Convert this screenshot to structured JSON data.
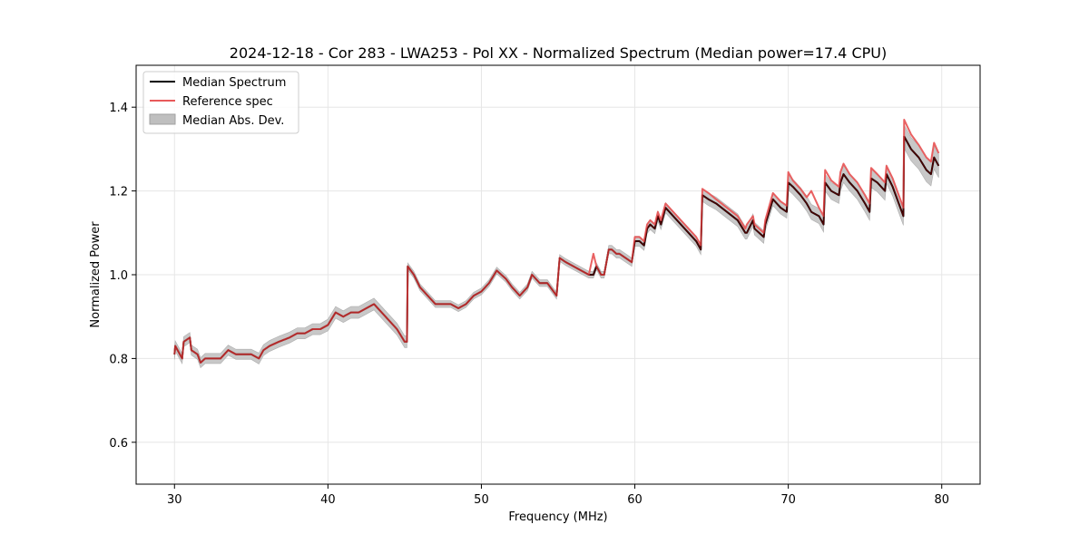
{
  "chart_data": {
    "type": "line",
    "title": "2024-12-18 - Cor 283 - LWA253 - Pol XX - Normalized Spectrum (Median power=17.4 CPU)",
    "xlabel": "Frequency (MHz)",
    "ylabel": "Normalized Power",
    "xlim": [
      27.5,
      82.5
    ],
    "ylim": [
      0.5,
      1.5
    ],
    "xticks": [
      30,
      40,
      50,
      60,
      70,
      80
    ],
    "yticks": [
      0.6,
      0.8,
      1.0,
      1.2,
      1.4
    ],
    "xtick_labels": [
      "30",
      "40",
      "50",
      "60",
      "70",
      "80"
    ],
    "ytick_labels": [
      "0.6",
      "0.8",
      "1.0",
      "1.2",
      "1.4"
    ],
    "grid": true,
    "legend_position": "top-left",
    "legend": {
      "median": "Median Spectrum",
      "reference": "Reference spec",
      "mad": "Median Abs. Dev."
    },
    "colors": {
      "median": "#000000",
      "reference": "#e8595a",
      "overlap": "#8b0000",
      "mad_fill": "#bfbfbf",
      "mad_edge": "#a0a0a0",
      "grid": "#e6e6e6"
    },
    "series": [
      {
        "name": "Median Spectrum",
        "x": [
          30.0,
          30.05,
          30.5,
          30.6,
          31.0,
          31.1,
          31.5,
          31.7,
          32.0,
          32.5,
          33.0,
          33.5,
          34.0,
          34.5,
          35.0,
          35.5,
          35.8,
          36.2,
          36.8,
          37.5,
          38.0,
          38.5,
          39.0,
          39.5,
          40.0,
          40.5,
          41.0,
          41.5,
          42.0,
          42.5,
          43.0,
          43.5,
          44.0,
          44.5,
          45.0,
          45.15,
          45.2,
          45.6,
          46.0,
          46.5,
          47.0,
          47.5,
          48.0,
          48.5,
          49.0,
          49.5,
          50.0,
          50.5,
          51.0,
          51.3,
          51.6,
          52.0,
          52.5,
          53.0,
          53.3,
          53.8,
          54.3,
          54.9,
          55.1,
          55.5,
          56.0,
          56.5,
          57.0,
          57.3,
          57.5,
          57.8,
          58.0,
          58.3,
          58.5,
          58.8,
          59.0,
          59.4,
          59.8,
          60.0,
          60.3,
          60.6,
          60.8,
          61.0,
          61.3,
          61.5,
          61.7,
          62.0,
          62.5,
          63.0,
          63.5,
          64.0,
          64.3,
          64.4,
          64.8,
          65.3,
          66.0,
          66.7,
          67.2,
          67.3,
          67.7,
          67.8,
          68.4,
          68.5,
          69.0,
          69.5,
          69.9,
          70.0,
          70.3,
          70.8,
          71.2,
          71.5,
          72.0,
          72.3,
          72.4,
          72.8,
          73.3,
          73.4,
          73.6,
          74.0,
          74.5,
          75.0,
          75.3,
          75.4,
          75.8,
          76.3,
          76.4,
          76.8,
          77.2,
          77.5,
          77.55,
          78.0,
          78.5,
          79.0,
          79.3,
          79.5,
          79.8
        ],
        "values": [
          0.81,
          0.83,
          0.8,
          0.84,
          0.85,
          0.82,
          0.81,
          0.79,
          0.8,
          0.8,
          0.8,
          0.82,
          0.81,
          0.81,
          0.81,
          0.8,
          0.82,
          0.83,
          0.84,
          0.85,
          0.86,
          0.86,
          0.87,
          0.87,
          0.88,
          0.91,
          0.9,
          0.91,
          0.91,
          0.92,
          0.93,
          0.91,
          0.89,
          0.87,
          0.84,
          0.84,
          1.02,
          1.0,
          0.97,
          0.95,
          0.93,
          0.93,
          0.93,
          0.92,
          0.93,
          0.95,
          0.96,
          0.98,
          1.01,
          1.0,
          0.99,
          0.97,
          0.95,
          0.97,
          1.0,
          0.98,
          0.98,
          0.95,
          1.04,
          1.03,
          1.02,
          1.01,
          1.0,
          1.0,
          1.02,
          1.0,
          1.0,
          1.06,
          1.06,
          1.05,
          1.05,
          1.04,
          1.03,
          1.08,
          1.08,
          1.07,
          1.11,
          1.12,
          1.11,
          1.14,
          1.12,
          1.16,
          1.14,
          1.12,
          1.1,
          1.08,
          1.06,
          1.19,
          1.18,
          1.17,
          1.15,
          1.13,
          1.1,
          1.1,
          1.13,
          1.11,
          1.09,
          1.12,
          1.18,
          1.16,
          1.15,
          1.22,
          1.21,
          1.19,
          1.17,
          1.15,
          1.14,
          1.12,
          1.22,
          1.2,
          1.19,
          1.22,
          1.24,
          1.22,
          1.2,
          1.17,
          1.15,
          1.23,
          1.22,
          1.2,
          1.24,
          1.21,
          1.17,
          1.14,
          1.33,
          1.3,
          1.28,
          1.25,
          1.24,
          1.28,
          1.26
        ]
      },
      {
        "name": "Reference spec",
        "x": [
          30.0,
          30.05,
          30.5,
          30.6,
          31.0,
          31.1,
          31.5,
          31.7,
          32.0,
          32.5,
          33.0,
          33.5,
          34.0,
          34.5,
          35.0,
          35.5,
          35.8,
          36.2,
          36.8,
          37.5,
          38.0,
          38.5,
          39.0,
          39.5,
          40.0,
          40.5,
          41.0,
          41.5,
          42.0,
          42.5,
          43.0,
          43.5,
          44.0,
          44.5,
          45.0,
          45.15,
          45.2,
          45.6,
          46.0,
          46.5,
          47.0,
          47.5,
          48.0,
          48.5,
          49.0,
          49.5,
          50.0,
          50.5,
          51.0,
          51.3,
          51.6,
          52.0,
          52.5,
          53.0,
          53.3,
          53.8,
          54.3,
          54.9,
          55.1,
          55.5,
          56.0,
          56.5,
          57.0,
          57.3,
          57.5,
          57.8,
          58.0,
          58.3,
          58.5,
          58.8,
          59.0,
          59.4,
          59.8,
          60.0,
          60.3,
          60.6,
          60.8,
          61.0,
          61.3,
          61.5,
          61.7,
          62.0,
          62.5,
          63.0,
          63.5,
          64.0,
          64.3,
          64.4,
          64.8,
          65.3,
          66.0,
          66.7,
          67.2,
          67.3,
          67.7,
          67.8,
          68.4,
          68.5,
          69.0,
          69.5,
          69.9,
          70.0,
          70.3,
          70.8,
          71.2,
          71.5,
          72.0,
          72.3,
          72.4,
          72.8,
          73.3,
          73.4,
          73.6,
          74.0,
          74.5,
          75.0,
          75.3,
          75.4,
          75.8,
          76.3,
          76.4,
          76.8,
          77.2,
          77.5,
          77.55,
          78.0,
          78.5,
          79.0,
          79.3,
          79.5,
          79.8
        ],
        "values": [
          0.81,
          0.83,
          0.8,
          0.84,
          0.85,
          0.82,
          0.81,
          0.79,
          0.8,
          0.8,
          0.8,
          0.82,
          0.81,
          0.81,
          0.81,
          0.8,
          0.82,
          0.83,
          0.84,
          0.85,
          0.86,
          0.86,
          0.87,
          0.87,
          0.88,
          0.91,
          0.9,
          0.91,
          0.91,
          0.92,
          0.93,
          0.91,
          0.89,
          0.87,
          0.84,
          0.84,
          1.02,
          1.0,
          0.97,
          0.95,
          0.93,
          0.93,
          0.93,
          0.92,
          0.93,
          0.95,
          0.96,
          0.98,
          1.01,
          1.0,
          0.99,
          0.97,
          0.95,
          0.97,
          1.0,
          0.98,
          0.98,
          0.95,
          1.04,
          1.03,
          1.02,
          1.01,
          1.0,
          1.05,
          1.02,
          1.0,
          1.0,
          1.06,
          1.06,
          1.05,
          1.05,
          1.04,
          1.03,
          1.09,
          1.09,
          1.08,
          1.12,
          1.13,
          1.12,
          1.15,
          1.13,
          1.17,
          1.15,
          1.13,
          1.11,
          1.09,
          1.07,
          1.205,
          1.195,
          1.18,
          1.16,
          1.14,
          1.11,
          1.12,
          1.14,
          1.12,
          1.1,
          1.13,
          1.195,
          1.175,
          1.165,
          1.245,
          1.225,
          1.205,
          1.185,
          1.2,
          1.16,
          1.14,
          1.25,
          1.225,
          1.21,
          1.245,
          1.265,
          1.24,
          1.22,
          1.19,
          1.17,
          1.255,
          1.24,
          1.22,
          1.26,
          1.23,
          1.19,
          1.16,
          1.37,
          1.335,
          1.31,
          1.28,
          1.27,
          1.315,
          1.29
        ]
      },
      {
        "name": "Median Abs. Dev.",
        "band_halfwidth": [
          0.012,
          0.012,
          0.012,
          0.012,
          0.012,
          0.012,
          0.012,
          0.012,
          0.012,
          0.012,
          0.012,
          0.012,
          0.012,
          0.012,
          0.012,
          0.013,
          0.013,
          0.013,
          0.013,
          0.013,
          0.013,
          0.013,
          0.013,
          0.013,
          0.014,
          0.014,
          0.014,
          0.014,
          0.014,
          0.014,
          0.014,
          0.014,
          0.014,
          0.014,
          0.014,
          0.014,
          0.008,
          0.008,
          0.008,
          0.008,
          0.008,
          0.008,
          0.008,
          0.008,
          0.008,
          0.008,
          0.008,
          0.008,
          0.008,
          0.008,
          0.008,
          0.008,
          0.008,
          0.008,
          0.008,
          0.008,
          0.008,
          0.008,
          0.008,
          0.008,
          0.008,
          0.008,
          0.008,
          0.008,
          0.008,
          0.008,
          0.008,
          0.01,
          0.01,
          0.01,
          0.01,
          0.01,
          0.01,
          0.012,
          0.012,
          0.012,
          0.012,
          0.012,
          0.012,
          0.012,
          0.012,
          0.012,
          0.012,
          0.012,
          0.012,
          0.012,
          0.012,
          0.015,
          0.015,
          0.015,
          0.015,
          0.015,
          0.015,
          0.015,
          0.015,
          0.015,
          0.015,
          0.015,
          0.015,
          0.015,
          0.015,
          0.018,
          0.018,
          0.018,
          0.018,
          0.018,
          0.018,
          0.018,
          0.02,
          0.02,
          0.02,
          0.02,
          0.02,
          0.02,
          0.02,
          0.02,
          0.02,
          0.022,
          0.022,
          0.022,
          0.022,
          0.022,
          0.022,
          0.022,
          0.028,
          0.028,
          0.028,
          0.028,
          0.028,
          0.028,
          0.028
        ]
      }
    ]
  }
}
